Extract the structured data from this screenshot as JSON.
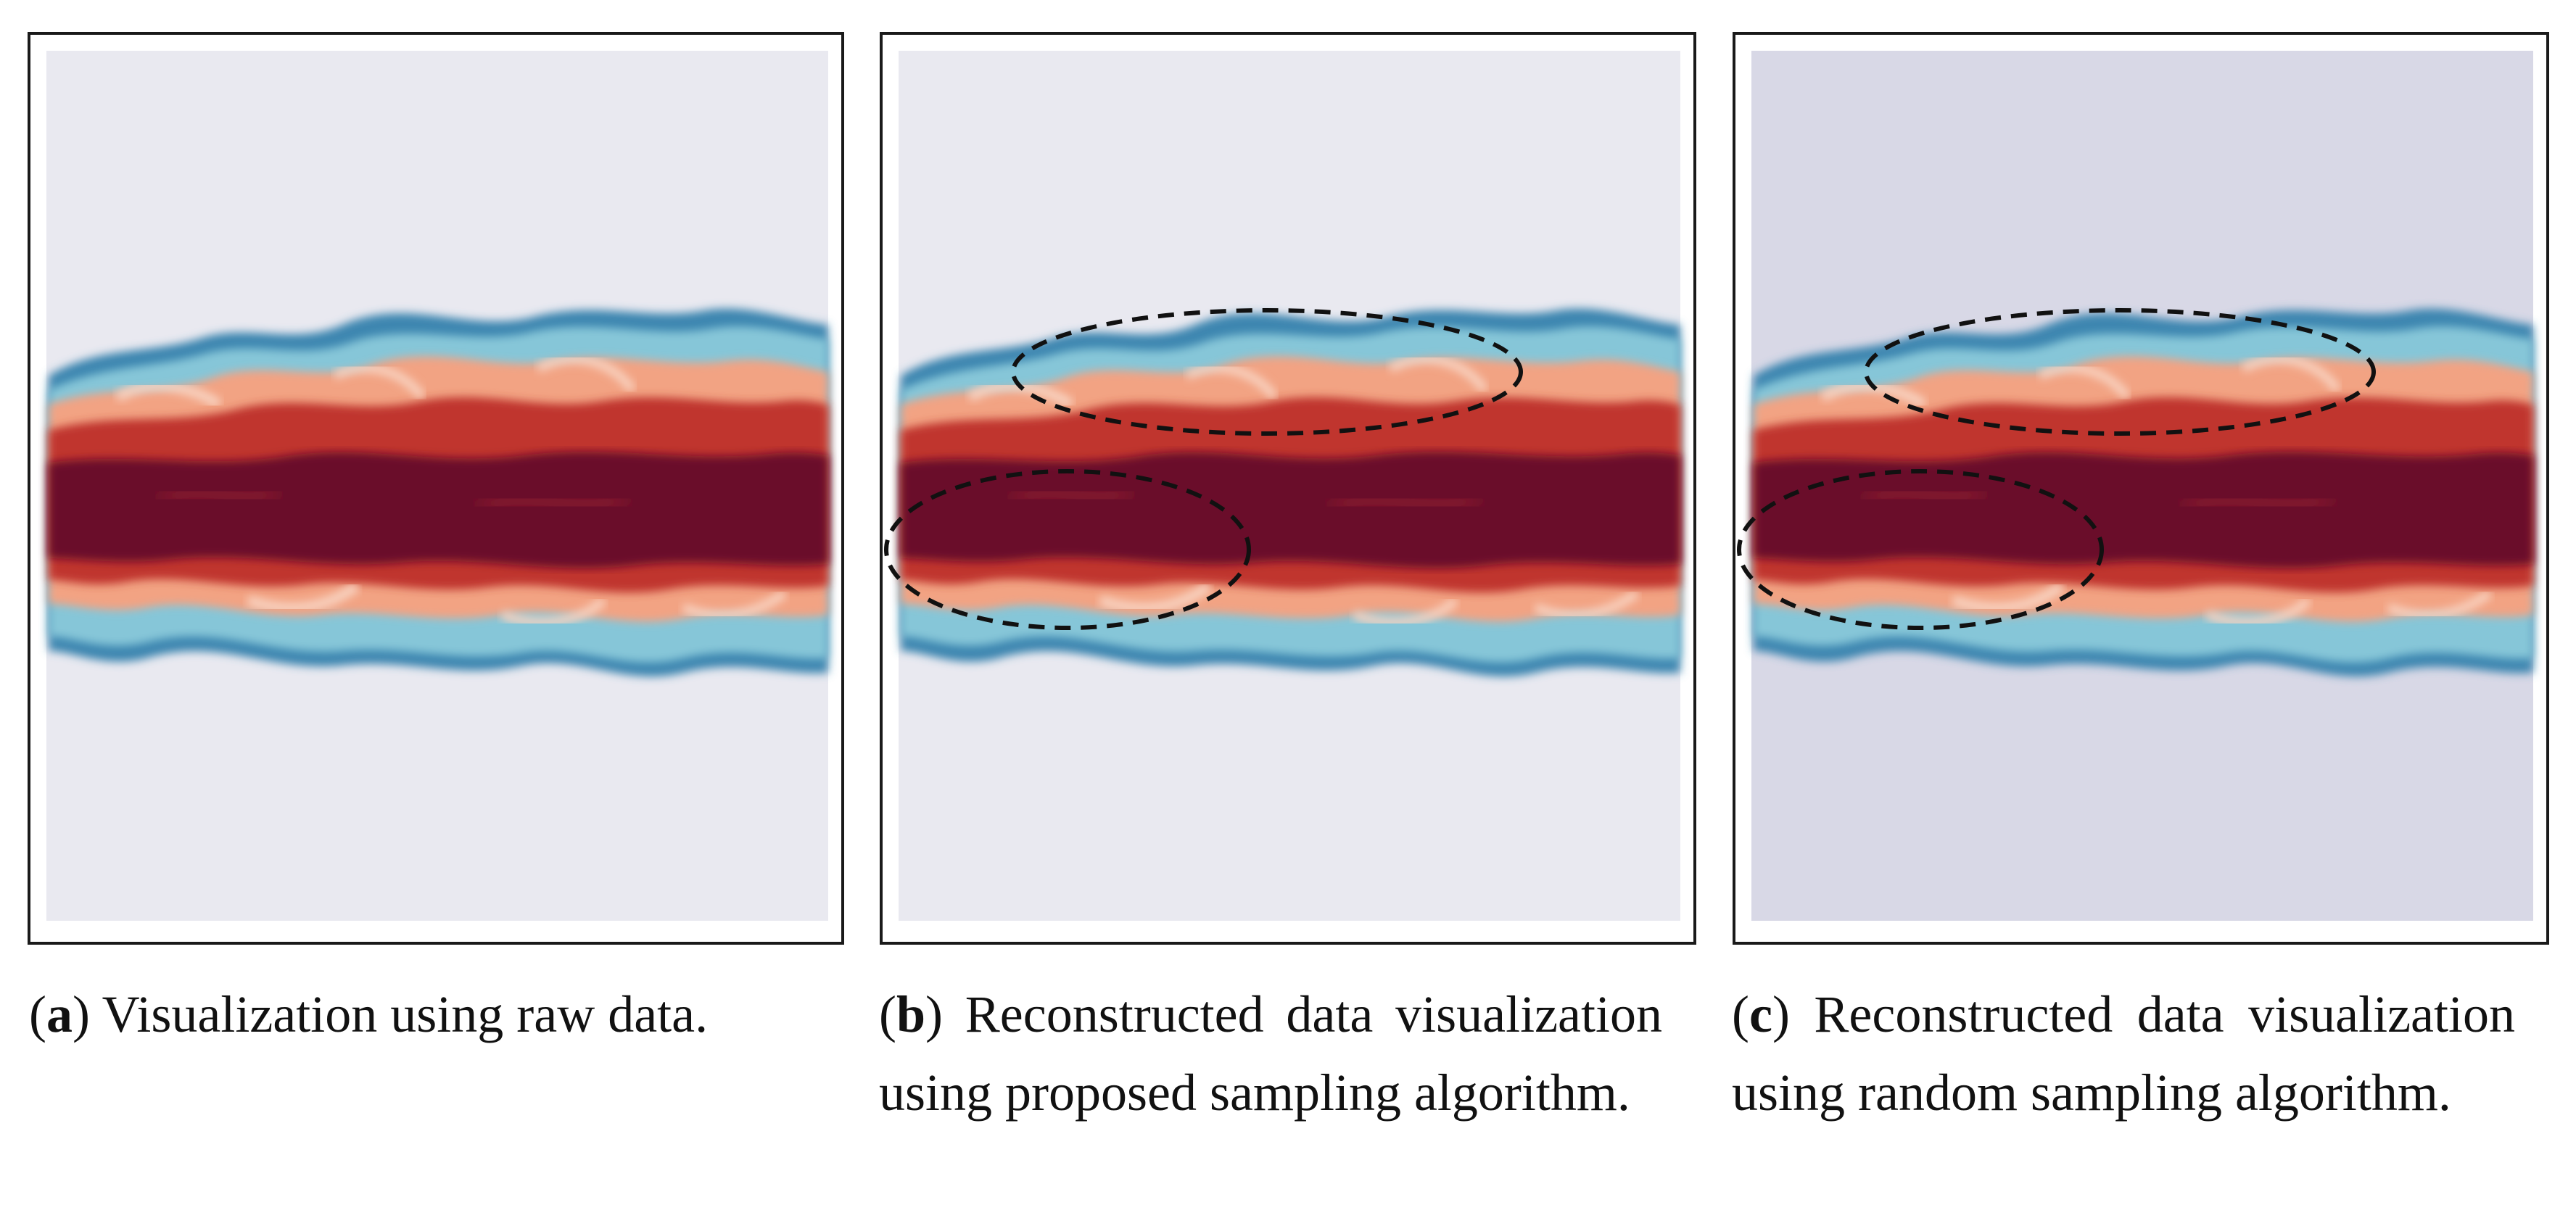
{
  "panels": [
    {
      "id": "a",
      "caption_label": "a",
      "caption_text": "Visualization using raw data."
    },
    {
      "id": "b",
      "caption_label": "b",
      "caption_text": "Reconstructed data visualization using proposed sampling algorithm."
    },
    {
      "id": "c",
      "caption_label": "c",
      "caption_text": "Reconstructed data visualization using random sampling algorithm."
    }
  ],
  "colors": {
    "background_light": "#e9e9f0",
    "background_random": "#d8d8e6",
    "deep_red": "#6a0f2a",
    "red": "#b3262a",
    "salmon": "#f4a585",
    "light": "#e8f2f4",
    "cyan": "#86c6d8",
    "blue": "#2c6f9c",
    "navy": "#1c2f6b",
    "annotation": "#111111"
  }
}
